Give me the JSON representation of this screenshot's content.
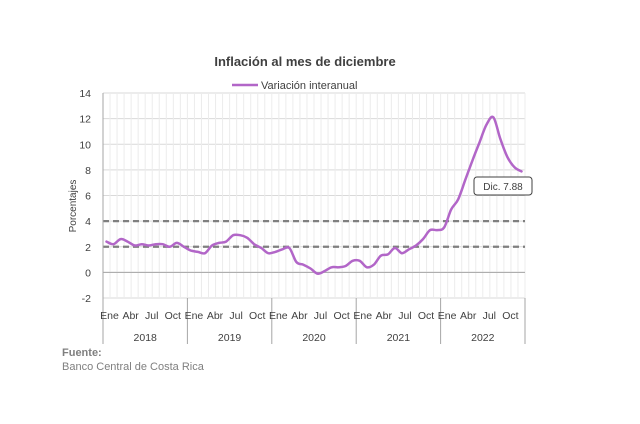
{
  "chart_data": {
    "type": "line",
    "title": "Inflación al mes de diciembre",
    "xlabel": "",
    "ylabel": "Porcentajes",
    "ylim": [
      -2,
      14
    ],
    "yticks": [
      -2,
      0,
      2,
      4,
      6,
      8,
      10,
      12,
      14
    ],
    "grid": true,
    "legend": "top-center",
    "month_labels": [
      "Ene",
      "Abr",
      "Jul",
      "Oct"
    ],
    "years": [
      "2018",
      "2019",
      "2020",
      "2021",
      "2022"
    ],
    "series": [
      {
        "name": "Variación interanual",
        "color": "#b266c8",
        "start": "2018-01",
        "values": [
          2.4,
          2.2,
          2.6,
          2.4,
          2.1,
          2.2,
          2.1,
          2.2,
          2.2,
          2.0,
          2.3,
          2.0,
          1.7,
          1.6,
          1.5,
          2.1,
          2.3,
          2.4,
          2.9,
          2.9,
          2.7,
          2.2,
          1.9,
          1.5,
          1.6,
          1.8,
          1.9,
          0.8,
          0.6,
          0.3,
          -0.1,
          0.1,
          0.4,
          0.4,
          0.5,
          0.9,
          0.9,
          0.4,
          0.6,
          1.3,
          1.4,
          1.9,
          1.5,
          1.8,
          2.1,
          2.6,
          3.3,
          3.3,
          3.5,
          4.9,
          5.7,
          7.2,
          8.7,
          10.1,
          11.5,
          12.1,
          10.4,
          9.0,
          8.2,
          7.88
        ]
      }
    ],
    "reference_lines": [
      2,
      4
    ],
    "reference_line_color": "#7f7f7f",
    "annotation": {
      "text": "Dic. 7.88",
      "at": "2022-12"
    }
  },
  "source": {
    "label": "Fuente:",
    "text": "Banco Central de Costa Rica"
  }
}
